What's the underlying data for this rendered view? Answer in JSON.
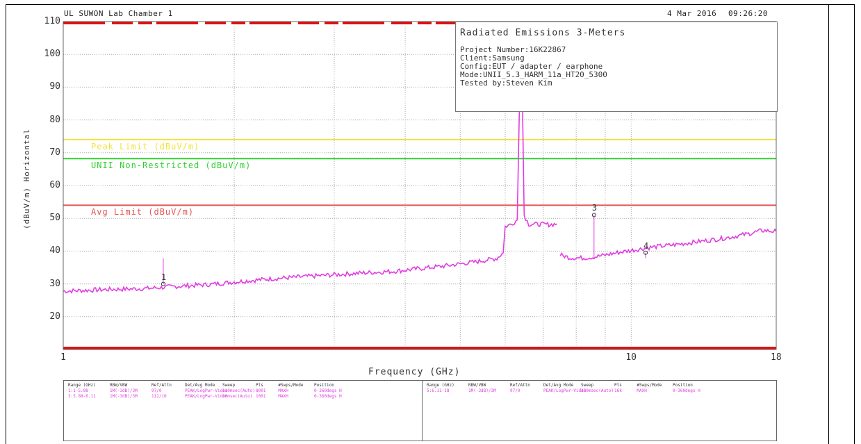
{
  "header": {
    "lab": "UL SUWON Lab Chamber 1",
    "date": "4 Mar 2016",
    "time": "09:26:20"
  },
  "info_box": {
    "title": "Radiated Emissions 3-Meters",
    "lines": [
      "Project Number:16K22867",
      "Client:Samsung",
      "Config:EUT / adapter / earphone",
      "Mode:UNII_5.3_HARM_11a_HT20_5300",
      "Tested by:Steven Kim"
    ]
  },
  "colors": {
    "trace": "#e23ce2",
    "peak_limit": "#f2e23a",
    "unii_limit": "#2ed12e",
    "avg_limit": "#e35555",
    "axis_bar": "#e01010"
  },
  "chart_data": {
    "type": "line",
    "xlabel": "Frequency (GHz)",
    "ylabel": "(dBuV/m) Horizontal",
    "xscale": "log",
    "xlim": [
      1,
      18
    ],
    "ylim": [
      10,
      110
    ],
    "x_ticks": [
      "1",
      "10",
      "18"
    ],
    "y_ticks": [
      "110",
      "100",
      "90",
      "80",
      "70",
      "60",
      "50",
      "40",
      "30",
      "20"
    ],
    "grid": true,
    "limits": [
      {
        "name": "Peak Limit (dBuV/m)",
        "value": 74
      },
      {
        "name": "UNII Non-Restricted (dBuV/m)",
        "value": 68.2
      },
      {
        "name": "Avg Limit (dBuV/m)",
        "value": 54
      }
    ],
    "series": [
      {
        "points": [
          [
            1.0,
            27.8
          ],
          [
            1.2,
            28.3
          ],
          [
            1.4,
            28.6
          ],
          [
            1.6,
            29.3
          ],
          [
            1.8,
            29.8
          ],
          [
            2.0,
            30.6
          ],
          [
            2.3,
            31.5
          ],
          [
            2.6,
            32.1
          ],
          [
            3.0,
            32.8
          ],
          [
            3.4,
            33.4
          ],
          [
            3.8,
            33.8
          ],
          [
            4.2,
            34.6
          ],
          [
            4.6,
            35.3
          ],
          [
            5.0,
            36.1
          ],
          [
            5.4,
            36.9
          ],
          [
            5.8,
            37.8
          ],
          [
            5.95,
            39.5
          ],
          [
            6.0,
            47.5
          ],
          [
            6.15,
            48.2
          ],
          [
            6.3,
            49.5
          ],
          [
            6.4,
            112
          ],
          [
            6.48,
            51
          ],
          [
            6.6,
            48.2
          ],
          [
            6.9,
            48.2
          ],
          [
            7.2,
            48.1
          ],
          [
            7.4,
            48.3
          ]
        ]
      },
      {
        "points": [
          [
            7.5,
            38.8
          ],
          [
            7.8,
            38.0
          ],
          [
            8.2,
            37.9
          ],
          [
            8.6,
            38.2
          ],
          [
            9.0,
            38.8
          ],
          [
            9.5,
            39.6
          ],
          [
            10.0,
            40.2
          ],
          [
            10.5,
            40.8
          ],
          [
            11.0,
            41.3
          ],
          [
            12.0,
            42.0
          ],
          [
            13.0,
            42.8
          ],
          [
            14.0,
            43.5
          ],
          [
            15.0,
            44.3
          ],
          [
            16.0,
            45.2
          ],
          [
            17.0,
            46.3
          ],
          [
            18.0,
            46.0
          ]
        ]
      }
    ],
    "markers": [
      {
        "label": "1",
        "x": 1.5,
        "y": 30
      },
      {
        "label": "3",
        "x": 8.6,
        "y": 51
      },
      {
        "label": "4",
        "x": 10.6,
        "y": 39.5
      }
    ]
  },
  "settings_table": {
    "left": {
      "headers": [
        "Range (GHz)",
        "RBW/VBW",
        "Ref/Attn",
        "Det/Avg Mode",
        "Sweep",
        "Pts",
        "#Swps/Mode",
        "Position"
      ],
      "rows": [
        [
          "1:1-5.88",
          "1M(-3dB)/3M",
          "97/0",
          "PEAK/LogPwr-Video",
          "110msec(Auto)",
          "8001",
          "MAXH",
          "0-360degs H"
        ],
        [
          "3:5.88-6.11",
          "1M(-3dB)/3M",
          "112/10",
          "PEAK/LogPwr-Video",
          "30msec(Auto)",
          "1001",
          "MAXH",
          "0-360degs H"
        ]
      ]
    },
    "right": {
      "headers": [
        "Range (GHz)",
        "RBW/VBW",
        "Ref/Attn",
        "Det/Avg Mode",
        "Sweep",
        "Pts",
        "#Swps/Mode",
        "Position"
      ],
      "rows": [
        [
          "5:6.11-18",
          "1M(-3dB)/3M",
          "97/0",
          "PEAK/LogPwr-Video",
          "320msec(Auto)",
          "16k",
          "MAXH",
          "0-360degs H"
        ]
      ]
    }
  }
}
